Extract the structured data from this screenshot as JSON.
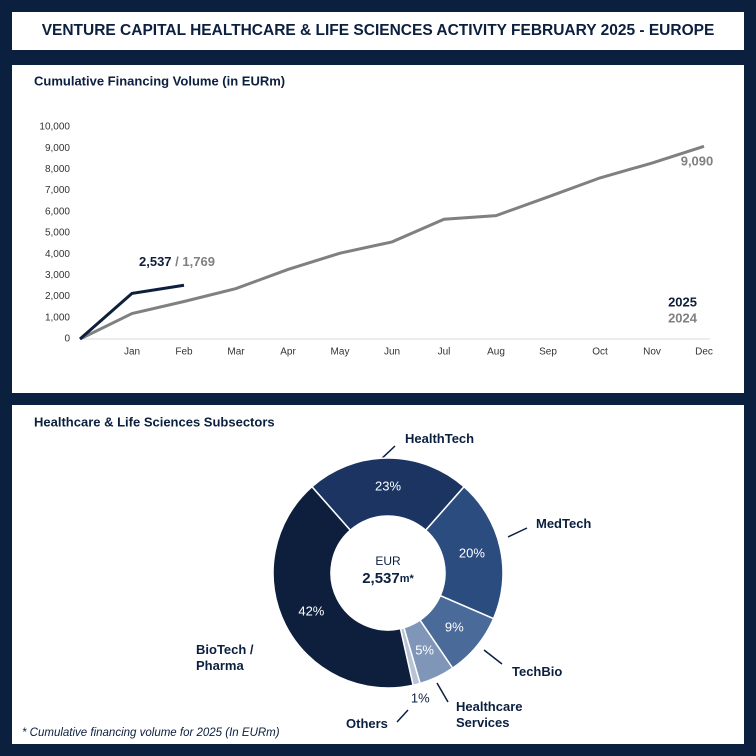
{
  "header": {
    "title": "VENTURE CAPITAL HEALTHCARE & LIFE SCIENCES ACTIVITY FEBRUARY 2025 - EUROPE"
  },
  "chart_data": [
    {
      "type": "line",
      "title": "Cumulative Financing Volume (in EURm)",
      "categories": [
        null,
        "Jan",
        "Feb",
        "Mar",
        "Apr",
        "May",
        "Jun",
        "Jul",
        "Aug",
        "Sep",
        "Oct",
        "Nov",
        "Dec"
      ],
      "series": [
        {
          "name": "2025",
          "color": "#0d1f3c",
          "values": [
            0,
            2150,
            2537,
            null,
            null,
            null,
            null,
            null,
            null,
            null,
            null,
            null,
            null
          ],
          "value_labels": [
            null,
            null,
            "2,537",
            null,
            null,
            null,
            null,
            null,
            null,
            null,
            null,
            null,
            null
          ]
        },
        {
          "name": "2024",
          "color": "#808080",
          "values": [
            0,
            1200,
            1769,
            2380,
            3280,
            4050,
            4580,
            5650,
            5820,
            6700,
            7600,
            8300,
            9090
          ],
          "value_labels": [
            null,
            null,
            "1,769",
            null,
            null,
            null,
            null,
            null,
            null,
            null,
            null,
            null,
            "9,090"
          ]
        }
      ],
      "annotation_separator": "/",
      "ylim": [
        0,
        10000
      ],
      "yticks": [
        0,
        {
          "value": 1000,
          "label": "1,000"
        },
        {
          "value": 2000,
          "label": "2,000"
        },
        {
          "value": 3000,
          "label": "3,000"
        },
        {
          "value": 4000,
          "label": "4,000"
        },
        {
          "value": 5000,
          "label": "5,000"
        },
        {
          "value": 6000,
          "label": "6,000"
        },
        {
          "value": 7000,
          "label": "7,000"
        },
        {
          "value": 8000,
          "label": "8,000"
        },
        {
          "value": 9000,
          "label": "9,000"
        },
        {
          "value": 10000,
          "label": "10,000"
        }
      ],
      "grid": false,
      "legend": "bottom-right"
    },
    {
      "type": "donut",
      "title": "Healthcare & Life Sciences Subsectors",
      "categories": [
        "HealthTech",
        "MedTech",
        "TechBio",
        "Healthcare Services",
        "Others",
        "BioTech / Pharma"
      ],
      "values": [
        23,
        20,
        9,
        5,
        1,
        42
      ],
      "value_labels": [
        "23%",
        "20%",
        "9%",
        "5%",
        "1%",
        "42%"
      ],
      "colors": [
        "#1b3461",
        "#2b4c7e",
        "#4a6a9a",
        "#7f96b8",
        "#b8c4d6",
        "#0d1f3c"
      ],
      "center_label": "EUR",
      "center_value": "2,537",
      "center_unit": "m*"
    }
  ],
  "footnote": "* Cumulative financing volume for 2025 (In EURm)"
}
